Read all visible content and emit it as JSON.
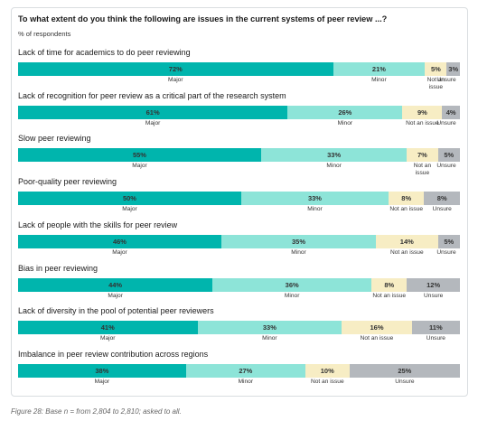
{
  "title": "To what extent do you think the following are issues in the current systems of peer review ...?",
  "subtitle": "% of respondents",
  "caption": "Figure 28: Base n = from 2,804 to 2,810; asked to all.",
  "chart_data": {
    "type": "bar",
    "orientation": "horizontal",
    "stacked": true,
    "percent_scale": [
      0,
      100
    ],
    "categories": [
      "Lack of time for academics to do peer reviewing",
      "Lack of recognition for peer review as a critical part of the research system",
      "Slow peer reviewing",
      "Poor-quality peer reviewing",
      "Lack of people with the skills for peer review",
      "Bias in peer reviewing",
      "Lack of diversity in the pool of potential peer reviewers",
      "Imbalance in peer review contribution across regions"
    ],
    "series": [
      {
        "name": "Major",
        "color": "#00b5ad",
        "values": [
          72,
          61,
          55,
          50,
          46,
          44,
          41,
          38
        ]
      },
      {
        "name": "Minor",
        "color": "#8de4d8",
        "values": [
          21,
          26,
          33,
          33,
          35,
          36,
          33,
          27
        ]
      },
      {
        "name": "Not an issue",
        "color": "#f7edc4",
        "values": [
          5,
          9,
          7,
          8,
          14,
          8,
          16,
          10
        ]
      },
      {
        "name": "Unsure",
        "color": "#b4b8bd",
        "values": [
          3,
          4,
          5,
          8,
          5,
          12,
          11,
          25
        ]
      }
    ],
    "grid": false,
    "legend": "none"
  }
}
